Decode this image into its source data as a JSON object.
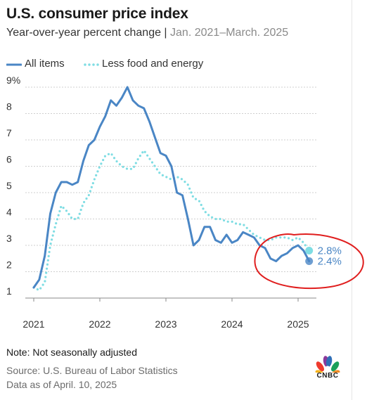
{
  "header": {
    "title": "U.S. consumer price index",
    "subtitle": "Year-over-year percent change",
    "subtitle_range": "Jan. 2021–March. 2025"
  },
  "legend": {
    "all_items": "All items",
    "core": "Less food and energy"
  },
  "colors": {
    "all_items": "#4a86c5",
    "core": "#7fdde3",
    "annotation": "#e01e1e",
    "grid": "#cfcfcf"
  },
  "chart_data": {
    "type": "line",
    "title": "U.S. consumer price index",
    "subtitle": "Year-over-year percent change | Jan. 2021–March. 2025",
    "xlabel": "",
    "ylabel": "",
    "x_ticks": [
      "2021",
      "2022",
      "2023",
      "2024",
      "2025"
    ],
    "y_ticks": [
      "1",
      "2",
      "3",
      "4",
      "5",
      "6",
      "7",
      "8",
      "9%"
    ],
    "ylim": [
      1,
      9
    ],
    "xlim": [
      "2021-01",
      "2025-03"
    ],
    "grid": "horizontal",
    "legend_position": "top-left",
    "x": [
      "2021-01",
      "2021-02",
      "2021-03",
      "2021-04",
      "2021-05",
      "2021-06",
      "2021-07",
      "2021-08",
      "2021-09",
      "2021-10",
      "2021-11",
      "2021-12",
      "2022-01",
      "2022-02",
      "2022-03",
      "2022-04",
      "2022-05",
      "2022-06",
      "2022-07",
      "2022-08",
      "2022-09",
      "2022-10",
      "2022-11",
      "2022-12",
      "2023-01",
      "2023-02",
      "2023-03",
      "2023-04",
      "2023-05",
      "2023-06",
      "2023-07",
      "2023-08",
      "2023-09",
      "2023-10",
      "2023-11",
      "2023-12",
      "2024-01",
      "2024-02",
      "2024-03",
      "2024-04",
      "2024-05",
      "2024-06",
      "2024-07",
      "2024-08",
      "2024-09",
      "2024-10",
      "2024-11",
      "2024-12",
      "2025-01",
      "2025-02",
      "2025-03"
    ],
    "series": [
      {
        "name": "All items",
        "style": "solid",
        "values": [
          1.4,
          1.7,
          2.6,
          4.2,
          5.0,
          5.4,
          5.4,
          5.3,
          5.4,
          6.2,
          6.8,
          7.0,
          7.5,
          7.9,
          8.5,
          8.3,
          8.6,
          9.0,
          8.5,
          8.3,
          8.2,
          7.7,
          7.1,
          6.5,
          6.4,
          6.0,
          5.0,
          4.9,
          4.0,
          3.0,
          3.2,
          3.7,
          3.7,
          3.2,
          3.1,
          3.4,
          3.1,
          3.2,
          3.5,
          3.4,
          3.3,
          3.0,
          2.9,
          2.5,
          2.4,
          2.6,
          2.7,
          2.9,
          3.0,
          2.8,
          2.4
        ]
      },
      {
        "name": "Less food and energy",
        "style": "dotted",
        "values": [
          1.4,
          1.3,
          1.6,
          3.0,
          3.8,
          4.5,
          4.3,
          4.0,
          4.0,
          4.6,
          4.9,
          5.5,
          6.0,
          6.4,
          6.5,
          6.2,
          6.0,
          5.9,
          5.9,
          6.3,
          6.6,
          6.3,
          6.0,
          5.7,
          5.6,
          5.5,
          5.6,
          5.5,
          5.3,
          4.8,
          4.7,
          4.3,
          4.1,
          4.0,
          4.0,
          3.9,
          3.9,
          3.8,
          3.8,
          3.6,
          3.4,
          3.3,
          3.2,
          3.2,
          3.3,
          3.3,
          3.3,
          3.2,
          3.3,
          3.1,
          2.8
        ]
      }
    ],
    "end_labels": {
      "core": "2.8%",
      "all_items": "2.4%"
    }
  },
  "footer": {
    "note": "Note: Not seasonally adjusted",
    "source": "Source: U.S. Bureau of Labor Statistics",
    "date": "Data as of April. 10, 2025",
    "logo_text": "CNBC",
    "logo_icon": "nbc-peacock-icon"
  }
}
